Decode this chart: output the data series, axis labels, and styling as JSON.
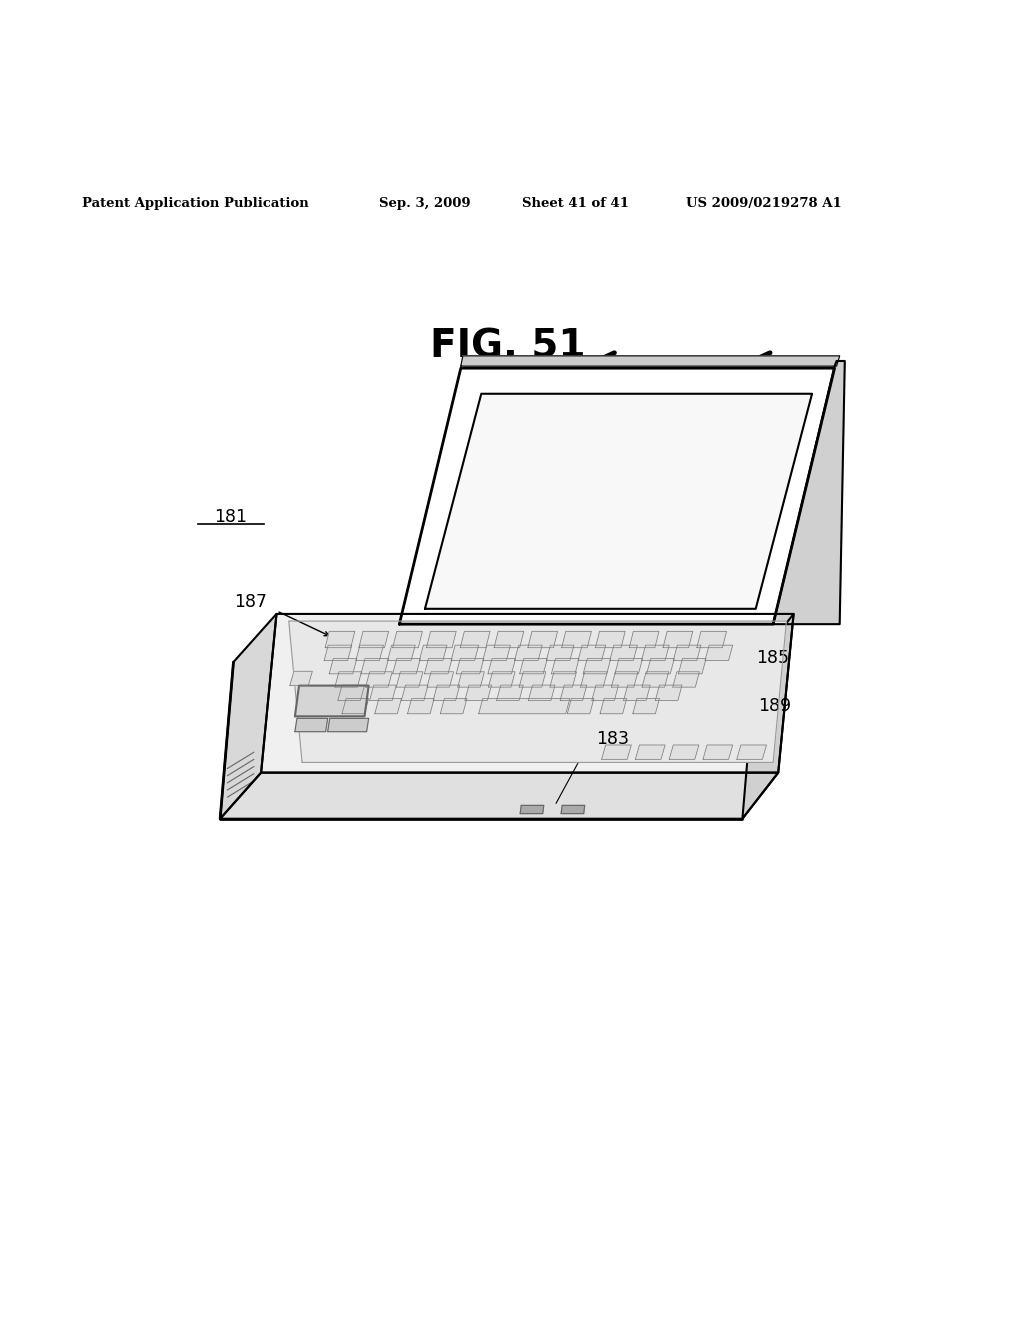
{
  "background_color": "#ffffff",
  "header_text": "Patent Application Publication",
  "header_date": "Sep. 3, 2009",
  "header_sheet": "Sheet 41 of 41",
  "header_patent": "US 2009/0219278 A1",
  "fig_title": "FIG. 51",
  "line_color": "#000000",
  "text_color": "#000000",
  "lw": 1.5,
  "thin_lw": 0.8
}
